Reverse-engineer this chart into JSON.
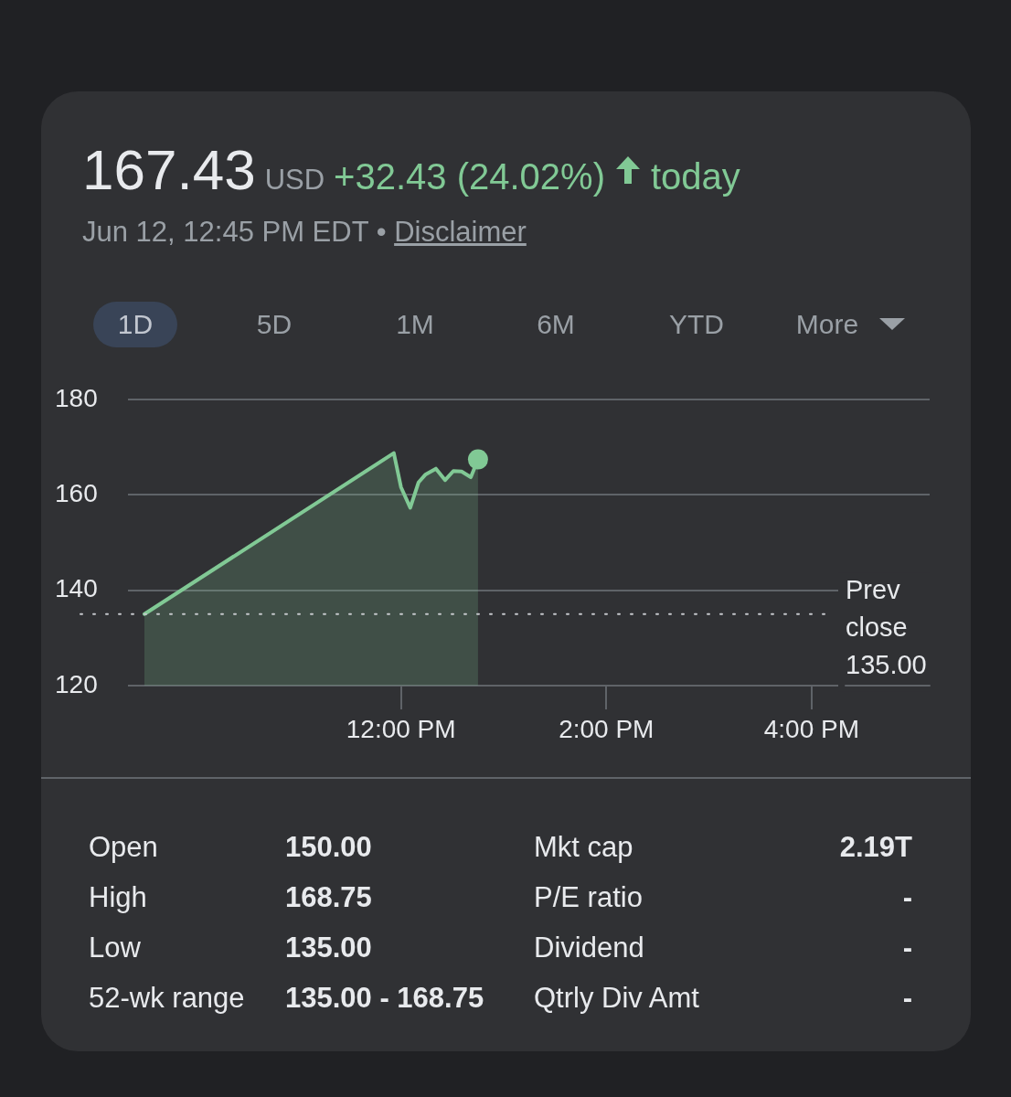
{
  "chart_data": {
    "type": "area",
    "title": "167.43",
    "subtitle": "Jun 12, 12:45 PM EDT •",
    "x": [
      9.5,
      11.93,
      12.0,
      12.09,
      12.17,
      12.24,
      12.34,
      12.43,
      12.51,
      12.59,
      12.68,
      12.75
    ],
    "series": [
      {
        "color": "#81c995",
        "values": [
          135,
          168.75,
          161.6,
          157.3,
          162.6,
          164.3,
          165.5,
          163.1,
          165,
          164.9,
          163.7,
          167.43
        ]
      }
    ],
    "xlim": [
      9.34,
      17.15
    ],
    "xticks": [
      {
        "value": 12,
        "label": "12:00 PM"
      },
      {
        "value": 14,
        "label": "2:00 PM"
      },
      {
        "value": 16,
        "label": "4:00 PM"
      }
    ],
    "ylim": [
      120,
      180
    ],
    "yticks": [
      120,
      140,
      160,
      180
    ],
    "grid": "y",
    "ref_lines": [
      {
        "axis": "y",
        "value": 135,
        "label": "Prev close 135.00",
        "line_style": "dotted"
      }
    ],
    "annotations": [
      "USD",
      "+32.43 (24.02%)",
      "today",
      "Disclaimer",
      "1D",
      "5D",
      "1M",
      "6M",
      "YTD",
      "More",
      "Open",
      "150.00",
      "Mkt cap",
      "2.19T",
      "High",
      "168.75",
      "P/E ratio",
      "-",
      "Low",
      "135.00",
      "Dividend",
      "-",
      "52-wk range",
      "135.00 - 168.75",
      "Qtrly Div Amt",
      "-"
    ]
  }
}
